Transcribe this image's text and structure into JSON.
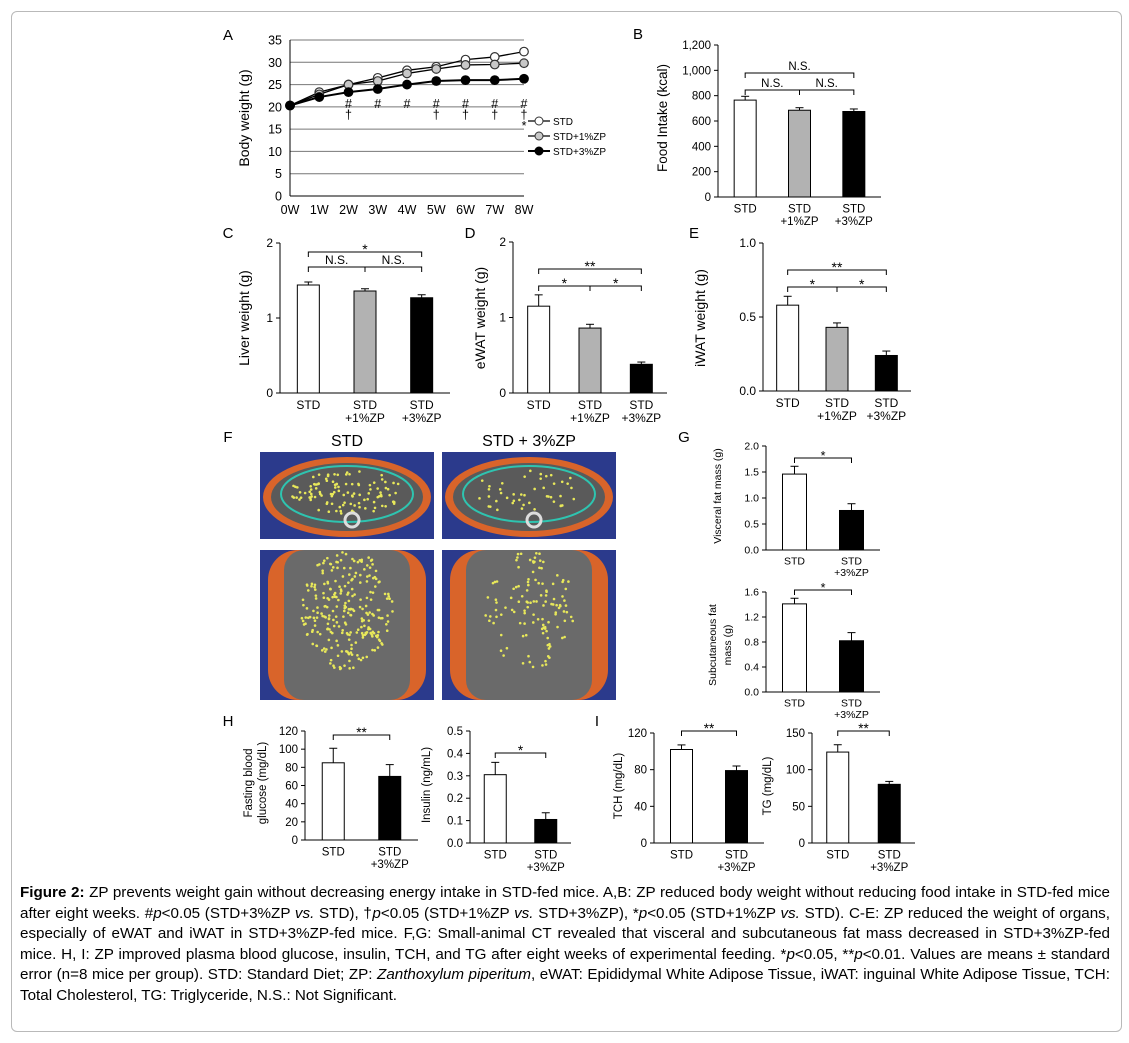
{
  "colors": {
    "std": "#ffffff",
    "zp1": "#b2b2b2",
    "zp3": "#000000",
    "ct_bg": "#2b3a8c",
    "visceral_fat": "#e8e85a",
    "subcutaneous_fat": "#d9642a",
    "roi_line": "#2ec4b0"
  },
  "panels": {
    "A": {
      "label": "A",
      "ylabel": "Body weight (g)",
      "legend": [
        "STD",
        "STD+1%ZP",
        "STD+3%ZP"
      ]
    },
    "B": {
      "label": "B",
      "ylabel": "Food Intake (kcal)"
    },
    "C": {
      "label": "C",
      "ylabel": "Liver weight (g)"
    },
    "D": {
      "label": "D",
      "ylabel": "eWAT weight (g)"
    },
    "E": {
      "label": "E",
      "ylabel": "iWAT weight (g)"
    },
    "F": {
      "label": "F",
      "titles": [
        "STD",
        "STD + 3%ZP"
      ]
    },
    "G": {
      "label": "G",
      "ylabels": [
        "Visceral fat mass (g)",
        "Subcutaneous fat mass (g)"
      ]
    },
    "H": {
      "label": "H",
      "ylabels": [
        "Fasting blood glucose (mg/dL)",
        "Insulin (ng/mL)"
      ]
    },
    "I": {
      "label": "I",
      "ylabels": [
        "TCH (mg/dL)",
        "TG (mg/dL)"
      ]
    }
  },
  "chart_data": [
    {
      "panel": "A",
      "type": "line",
      "x": [
        "0W",
        "1W",
        "2W",
        "3W",
        "4W",
        "5W",
        "6W",
        "7W",
        "8W"
      ],
      "ylabel": "Body weight (g)",
      "ylim": [
        0,
        35
      ],
      "yticks": [
        0,
        5,
        10,
        15,
        20,
        25,
        30,
        35
      ],
      "grid": true,
      "legend_position": "right",
      "series": [
        {
          "name": "STD",
          "values": [
            20.3,
            23.3,
            25.0,
            26.5,
            28.2,
            29.0,
            30.6,
            31.2,
            32.4
          ]
        },
        {
          "name": "STD+1%ZP",
          "values": [
            20.3,
            22.8,
            25.0,
            25.8,
            27.5,
            28.5,
            29.4,
            29.5,
            29.8
          ]
        },
        {
          "name": "STD+3%ZP",
          "values": [
            20.3,
            22.2,
            23.3,
            24.0,
            25.0,
            25.8,
            26.0,
            26.0,
            26.3
          ]
        }
      ],
      "annotations": [
        {
          "x": "2W",
          "marks": [
            "#",
            "†"
          ]
        },
        {
          "x": "3W",
          "marks": [
            "#"
          ]
        },
        {
          "x": "4W",
          "marks": [
            "#"
          ]
        },
        {
          "x": "5W",
          "marks": [
            "#",
            "†"
          ]
        },
        {
          "x": "6W",
          "marks": [
            "#",
            "†"
          ]
        },
        {
          "x": "7W",
          "marks": [
            "#",
            "†"
          ]
        },
        {
          "x": "8W",
          "marks": [
            "#",
            "†",
            "*"
          ]
        }
      ]
    },
    {
      "panel": "B",
      "type": "bar",
      "ylabel": "Food Intake (kcal)",
      "ylim": [
        0,
        1200
      ],
      "yticks": [
        "0",
        "200",
        "400",
        "600",
        "800",
        "1,000",
        "1,200"
      ],
      "categories": [
        "STD",
        "STD\n+1%ZP",
        "STD\n+3%ZP"
      ],
      "values": [
        765,
        685,
        675
      ],
      "errors": [
        30,
        20,
        20
      ],
      "significance": [
        {
          "from": 0,
          "to": 2,
          "label": "N.S.",
          "level": 2
        },
        {
          "from": 0,
          "to": 1,
          "label": "N.S.",
          "level": 1
        },
        {
          "from": 1,
          "to": 2,
          "label": "N.S.",
          "level": 1
        }
      ]
    },
    {
      "panel": "C",
      "type": "bar",
      "ylabel": "Liver weight (g)",
      "ylim": [
        0,
        2
      ],
      "yticks": [
        "0",
        "1",
        "2"
      ],
      "categories": [
        "STD",
        "STD\n+1%ZP",
        "STD\n+3%ZP"
      ],
      "values": [
        1.44,
        1.36,
        1.27
      ],
      "errors": [
        0.04,
        0.03,
        0.04
      ],
      "significance": [
        {
          "from": 0,
          "to": 2,
          "label": "*",
          "level": 2
        },
        {
          "from": 0,
          "to": 1,
          "label": "N.S.",
          "level": 1
        },
        {
          "from": 1,
          "to": 2,
          "label": "N.S.",
          "level": 1
        }
      ]
    },
    {
      "panel": "D",
      "type": "bar",
      "ylabel": "eWAT weight (g)",
      "ylim": [
        0,
        2
      ],
      "yticks": [
        "0",
        "1",
        "2"
      ],
      "categories": [
        "STD",
        "STD\n+1%ZP",
        "STD\n+3%ZP"
      ],
      "values": [
        1.15,
        0.86,
        0.38
      ],
      "errors": [
        0.15,
        0.05,
        0.03
      ],
      "significance": [
        {
          "from": 0,
          "to": 2,
          "label": "**",
          "level": 2
        },
        {
          "from": 0,
          "to": 1,
          "label": "*",
          "level": 1
        },
        {
          "from": 1,
          "to": 2,
          "label": "*",
          "level": 1
        }
      ]
    },
    {
      "panel": "E",
      "type": "bar",
      "ylabel": "iWAT weight (g)",
      "ylim": [
        0,
        1
      ],
      "yticks": [
        "0.0",
        "0.5",
        "1.0"
      ],
      "categories": [
        "STD",
        "STD\n+1%ZP",
        "STD\n+3%ZP"
      ],
      "values": [
        0.58,
        0.43,
        0.24
      ],
      "errors": [
        0.06,
        0.03,
        0.03
      ],
      "significance": [
        {
          "from": 0,
          "to": 2,
          "label": "**",
          "level": 2
        },
        {
          "from": 0,
          "to": 1,
          "label": "*",
          "level": 1
        },
        {
          "from": 1,
          "to": 2,
          "label": "*",
          "level": 1
        }
      ]
    },
    {
      "panel": "G1",
      "type": "bar",
      "ylabel": "Visceral fat mass (g)",
      "ylim": [
        0,
        2
      ],
      "yticks": [
        "0.0",
        "0.5",
        "1.0",
        "1.5",
        "2.0"
      ],
      "categories": [
        "STD",
        "STD\n+3%ZP"
      ],
      "values": [
        1.46,
        0.76
      ],
      "errors": [
        0.15,
        0.13
      ],
      "significance": [
        {
          "from": 0,
          "to": 1,
          "label": "*",
          "level": 1
        }
      ]
    },
    {
      "panel": "G2",
      "type": "bar",
      "ylabel": "Subcutaneous fat mass (g)",
      "ylim": [
        0,
        1.6
      ],
      "yticks": [
        "0.0",
        "0.4",
        "0.8",
        "1.2",
        "1.6"
      ],
      "categories": [
        "STD",
        "STD\n+3%ZP"
      ],
      "values": [
        1.41,
        0.82
      ],
      "errors": [
        0.09,
        0.13
      ],
      "significance": [
        {
          "from": 0,
          "to": 1,
          "label": "*",
          "level": 1
        }
      ]
    },
    {
      "panel": "H1",
      "type": "bar",
      "ylabel": "Fasting blood glucose (mg/dL)",
      "ylim": [
        0,
        120
      ],
      "yticks": [
        "0",
        "20",
        "40",
        "60",
        "80",
        "100",
        "120"
      ],
      "categories": [
        "STD",
        "STD\n+3%ZP"
      ],
      "values": [
        85,
        70
      ],
      "errors": [
        16,
        13
      ],
      "significance": [
        {
          "from": 0,
          "to": 1,
          "label": "**",
          "level": 1
        }
      ]
    },
    {
      "panel": "H2",
      "type": "bar",
      "ylabel": "Insulin (ng/mL)",
      "ylim": [
        0,
        0.5
      ],
      "yticks": [
        "0.0",
        "0.1",
        "0.2",
        "0.3",
        "0.4",
        "0.5"
      ],
      "categories": [
        "STD",
        "STD\n+3%ZP"
      ],
      "values": [
        0.305,
        0.105
      ],
      "errors": [
        0.055,
        0.03
      ],
      "significance": [
        {
          "from": 0,
          "to": 1,
          "label": "*",
          "level": 1
        }
      ]
    },
    {
      "panel": "I1",
      "type": "bar",
      "ylabel": "TCH (mg/dL)",
      "ylim": [
        0,
        120
      ],
      "yticks": [
        "0",
        "40",
        "80",
        "120"
      ],
      "categories": [
        "STD",
        "STD\n+3%ZP"
      ],
      "values": [
        102,
        79
      ],
      "errors": [
        5,
        5
      ],
      "significance": [
        {
          "from": 0,
          "to": 1,
          "label": "**",
          "level": 1
        }
      ]
    },
    {
      "panel": "I2",
      "type": "bar",
      "ylabel": "TG (mg/dL)",
      "ylim": [
        0,
        150
      ],
      "yticks": [
        "0",
        "50",
        "100",
        "150"
      ],
      "categories": [
        "STD",
        "STD\n+3%ZP"
      ],
      "values": [
        124,
        80
      ],
      "errors": [
        10,
        4
      ],
      "significance": [
        {
          "from": 0,
          "to": 1,
          "label": "**",
          "level": 1
        }
      ]
    }
  ],
  "caption": {
    "bold_lead": "Figure 2:",
    "s1": " ZP prevents weight gain without decreasing energy intake in STD-fed mice.  A,B: ZP reduced body weight without reducing food intake in STD-fed mice after eight weeks. #",
    "p1": "p",
    "s2": "<0.05 (STD+3%ZP ",
    "vs1": "vs.",
    "s3": " STD), †",
    "p2": "p",
    "s4": "<0.05 (STD+1%ZP ",
    "vs2": "vs.",
    "s5": " STD+3%ZP), *",
    "p3": "p",
    "s6": "<0.05 (STD+1%ZP ",
    "vs3": "vs.",
    "s7": " STD). C-E: ZP reduced the weight of organs, especially of eWAT and iWAT in STD+3%ZP-fed mice. F,G: Small-animal CT revealed that visceral and subcutaneous fat mass decreased in STD+3%ZP-fed mice. H, I: ZP improved plasma blood glucose, insulin, TCH, and TG after eight weeks of experimental feeding. *",
    "p4": "p",
    "s8": "<0.05, **",
    "p5": "p",
    "s9": "<0.01. Values are means ± standard error (n=8 mice per group). STD: Standard Diet; ZP: ",
    "species": "Zanthoxylum piperitum",
    "s10": ", eWAT: Epididymal White Adipose Tissue, iWAT: inguinal White Adipose Tissue, TCH: Total Cholesterol, TG: Triglyceride, N.S.: Not Significant."
  }
}
